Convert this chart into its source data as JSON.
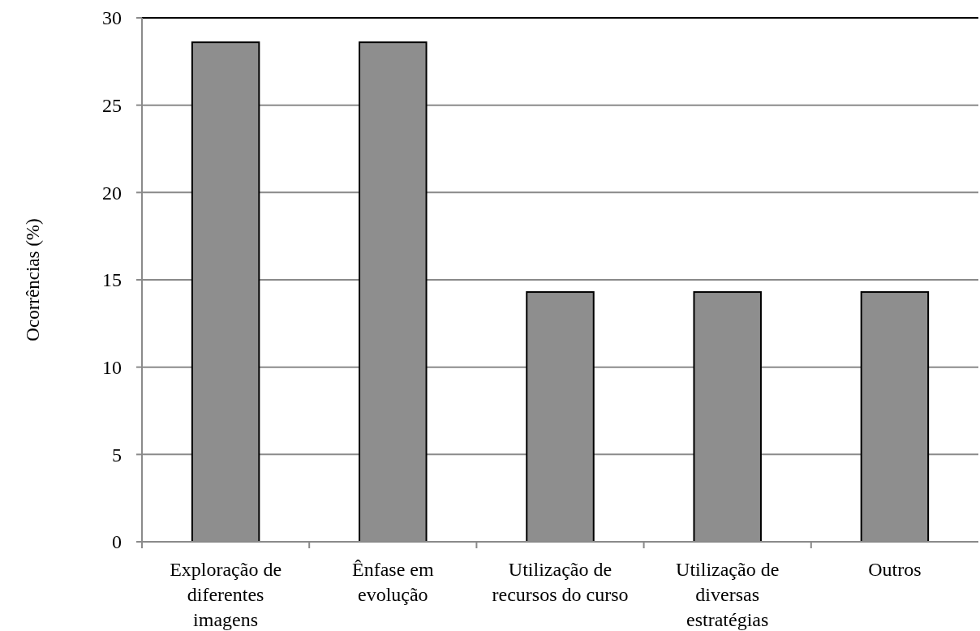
{
  "chart_data": {
    "type": "bar",
    "ylabel": "Ocorrências (%)",
    "categories": [
      "Exploração de diferentes imagens",
      "Ênfase em evolução",
      "Utilização de recursos do curso",
      "Utilização de diversas estratégias",
      "Outros"
    ],
    "values": [
      28.6,
      28.6,
      14.3,
      14.3,
      14.3
    ],
    "color": "#8e8e8e",
    "ylim": [
      0,
      30
    ],
    "yticks": [
      0,
      5,
      10,
      15,
      20,
      25,
      30
    ],
    "grid": "y"
  }
}
